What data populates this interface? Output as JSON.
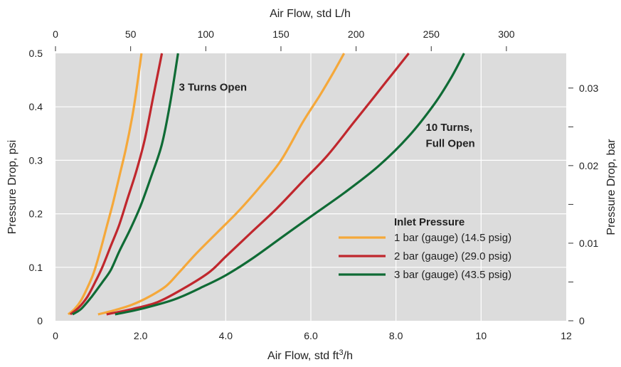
{
  "chart_data": {
    "type": "line",
    "xlabel_bottom": "Air Flow, std ft",
    "xlabel_bottom_sup": "3",
    "xlabel_bottom_suffix": "/h",
    "xlabel_top": "Air Flow, std L/h",
    "ylabel_left": "Pressure Drop, psi",
    "ylabel_right": "Pressure Drop, bar",
    "xlim": [
      0,
      12
    ],
    "ylim": [
      0,
      0.5
    ],
    "x_ticks": [
      0,
      2,
      4,
      6,
      8,
      10,
      12
    ],
    "x_tick_labels": [
      "0",
      "2.0",
      "4.0",
      "6.0",
      "8.0",
      "10",
      "12"
    ],
    "y_ticks": [
      0,
      0.1,
      0.2,
      0.3,
      0.4,
      0.5
    ],
    "y_tick_labels": [
      "0",
      "0.1",
      "0.2",
      "0.3",
      "0.4",
      "0.5"
    ],
    "top_ticks": [
      0,
      50,
      100,
      150,
      200,
      250,
      300
    ],
    "top_tick_labels": [
      "0",
      "50",
      "100",
      "150",
      "200",
      "250",
      "300"
    ],
    "right_ticks": [
      0,
      0.005,
      0.01,
      0.015,
      0.02,
      0.025,
      0.03
    ],
    "right_tick_labels": [
      "0",
      "",
      "0.01",
      "",
      "0.02",
      "",
      "0.03"
    ],
    "grid": true,
    "legend_title": "Inlet Pressure",
    "legend_position": "center-right",
    "annotations": [
      {
        "text": "3 Turns Open",
        "x": 2.9,
        "y": 0.43
      },
      {
        "text": "10 Turns,",
        "x": 8.7,
        "y": 0.355
      },
      {
        "text": "Full Open",
        "x": 8.7,
        "y": 0.325
      }
    ],
    "series": [
      {
        "name": "1 bar (gauge) (14.5 psig)",
        "color": "#F5A83A",
        "group": "3 Turns Open",
        "x": [
          0.3,
          0.45,
          0.6,
          0.75,
          0.9,
          1.05,
          1.2,
          1.35,
          1.5,
          1.65,
          1.8,
          1.9,
          2.02
        ],
        "y": [
          0.012,
          0.022,
          0.038,
          0.062,
          0.09,
          0.13,
          0.175,
          0.22,
          0.27,
          0.32,
          0.38,
          0.43,
          0.5
        ]
      },
      {
        "name": "2 bar (gauge) (29.0 psig)",
        "color": "#C0272D",
        "group": "3 Turns Open",
        "x": [
          0.35,
          0.55,
          0.75,
          0.95,
          1.1,
          1.3,
          1.5,
          1.7,
          1.9,
          2.1,
          2.3,
          2.5
        ],
        "y": [
          0.012,
          0.025,
          0.045,
          0.075,
          0.1,
          0.14,
          0.18,
          0.23,
          0.28,
          0.34,
          0.42,
          0.5
        ]
      },
      {
        "name": "3 bar (gauge) (43.5 psig)",
        "color": "#0F6B35",
        "group": "3 Turns Open",
        "x": [
          0.4,
          0.6,
          0.85,
          1.1,
          1.3,
          1.5,
          1.75,
          2.0,
          2.25,
          2.5,
          2.7,
          2.88
        ],
        "y": [
          0.012,
          0.022,
          0.045,
          0.072,
          0.095,
          0.13,
          0.17,
          0.215,
          0.27,
          0.33,
          0.41,
          0.5
        ]
      },
      {
        "name": "1 bar (gauge) (14.5 psig)",
        "color": "#F5A83A",
        "group": "10 Turns, Full Open",
        "x": [
          1.0,
          1.4,
          1.8,
          2.2,
          2.6,
          2.9,
          3.3,
          3.8,
          4.3,
          4.8,
          5.3,
          5.8,
          6.2,
          6.5,
          6.78
        ],
        "y": [
          0.012,
          0.02,
          0.03,
          0.045,
          0.065,
          0.09,
          0.125,
          0.165,
          0.205,
          0.25,
          0.3,
          0.37,
          0.42,
          0.46,
          0.5
        ]
      },
      {
        "name": "2 bar (gauge) (29.0 psig)",
        "color": "#C0272D",
        "group": "10 Turns, Full Open",
        "x": [
          1.2,
          1.8,
          2.4,
          3.0,
          3.6,
          4.0,
          4.6,
          5.2,
          5.8,
          6.4,
          7.0,
          7.5,
          7.9,
          8.3
        ],
        "y": [
          0.012,
          0.022,
          0.035,
          0.06,
          0.09,
          0.12,
          0.165,
          0.21,
          0.26,
          0.31,
          0.37,
          0.42,
          0.46,
          0.5
        ]
      },
      {
        "name": "3 bar (gauge) (43.5 psig)",
        "color": "#0F6B35",
        "group": "10 Turns, Full Open",
        "x": [
          1.4,
          2.0,
          2.8,
          3.5,
          4.0,
          4.6,
          5.3,
          6.0,
          6.8,
          7.6,
          8.3,
          8.9,
          9.3,
          9.6
        ],
        "y": [
          0.012,
          0.022,
          0.04,
          0.065,
          0.085,
          0.115,
          0.155,
          0.195,
          0.24,
          0.29,
          0.345,
          0.405,
          0.455,
          0.5
        ]
      }
    ]
  }
}
